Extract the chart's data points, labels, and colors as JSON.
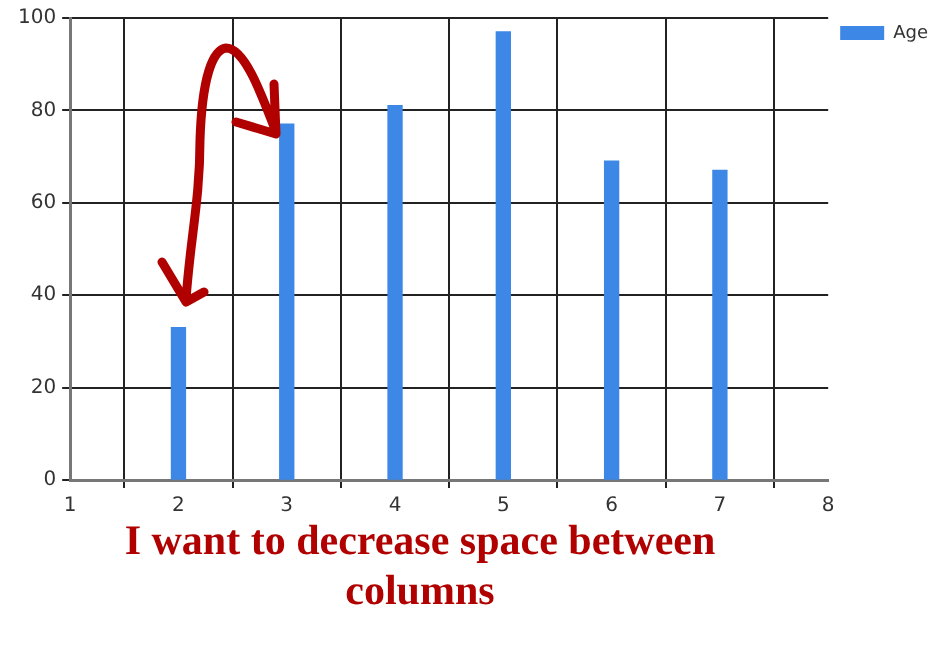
{
  "chart_data": {
    "type": "bar",
    "x": [
      2,
      3,
      4,
      5,
      6,
      7
    ],
    "series": [
      {
        "name": "Age",
        "color": "#3d87e6",
        "values": [
          33,
          77,
          81,
          97,
          69,
          67
        ]
      }
    ],
    "xlim": [
      1,
      8
    ],
    "xticks": [
      1,
      2,
      3,
      4,
      5,
      6,
      7,
      8
    ],
    "ylim": [
      0,
      100
    ],
    "yticks": [
      0,
      20,
      40,
      60,
      80,
      100
    ],
    "grid": true,
    "legend": "top right",
    "annotations": [
      "I want to decrease space between columns"
    ]
  }
}
